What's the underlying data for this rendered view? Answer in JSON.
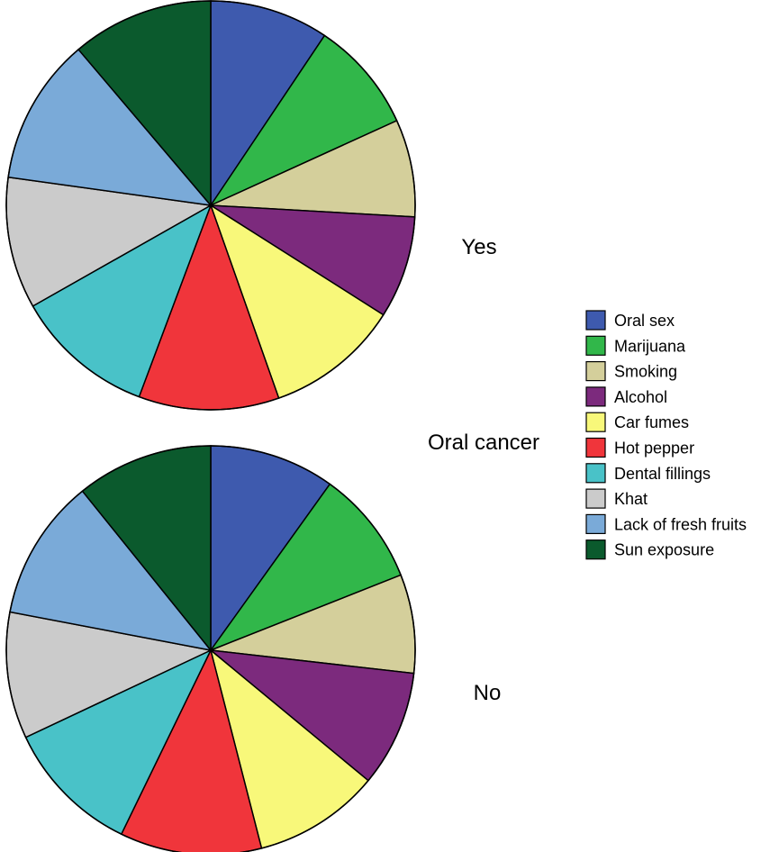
{
  "group_title": "Oral cancer",
  "chart_data": [
    {
      "type": "pie",
      "label": "Yes",
      "categories": [
        "Oral sex",
        "Marijuana",
        "Smoking",
        "Alcohol",
        "Car fumes",
        "Hot pepper",
        "Dental fillings",
        "Khat",
        "Lack of fresh fruits",
        "Sun exposure"
      ],
      "values": [
        9.4,
        8.8,
        7.7,
        8.1,
        10.6,
        11.1,
        11.1,
        10.4,
        11.6,
        11.2
      ]
    },
    {
      "type": "pie",
      "label": "No",
      "categories": [
        "Oral sex",
        "Marijuana",
        "Smoking",
        "Alcohol",
        "Car fumes",
        "Hot pepper",
        "Dental fillings",
        "Khat",
        "Lack of fresh fruits",
        "Sun exposure"
      ],
      "values": [
        9.9,
        9.1,
        7.8,
        9.2,
        10.0,
        11.2,
        10.8,
        10.0,
        11.2,
        10.8
      ]
    }
  ],
  "legend": {
    "items": [
      {
        "label": "Oral sex",
        "color": "#3e5aae"
      },
      {
        "label": "Marijuana",
        "color": "#31b74a"
      },
      {
        "label": "Smoking",
        "color": "#d4cf9b"
      },
      {
        "label": "Alcohol",
        "color": "#7c2a7d"
      },
      {
        "label": "Car fumes",
        "color": "#f8f87a"
      },
      {
        "label": "Hot pepper",
        "color": "#f0353b"
      },
      {
        "label": "Dental fillings",
        "color": "#49c2c8"
      },
      {
        "label": "Khat",
        "color": "#cbcbcb"
      },
      {
        "label": "Lack of fresh fruits",
        "color": "#7aaad8"
      },
      {
        "label": "Sun exposure",
        "color": "#0b5a2d"
      }
    ]
  }
}
